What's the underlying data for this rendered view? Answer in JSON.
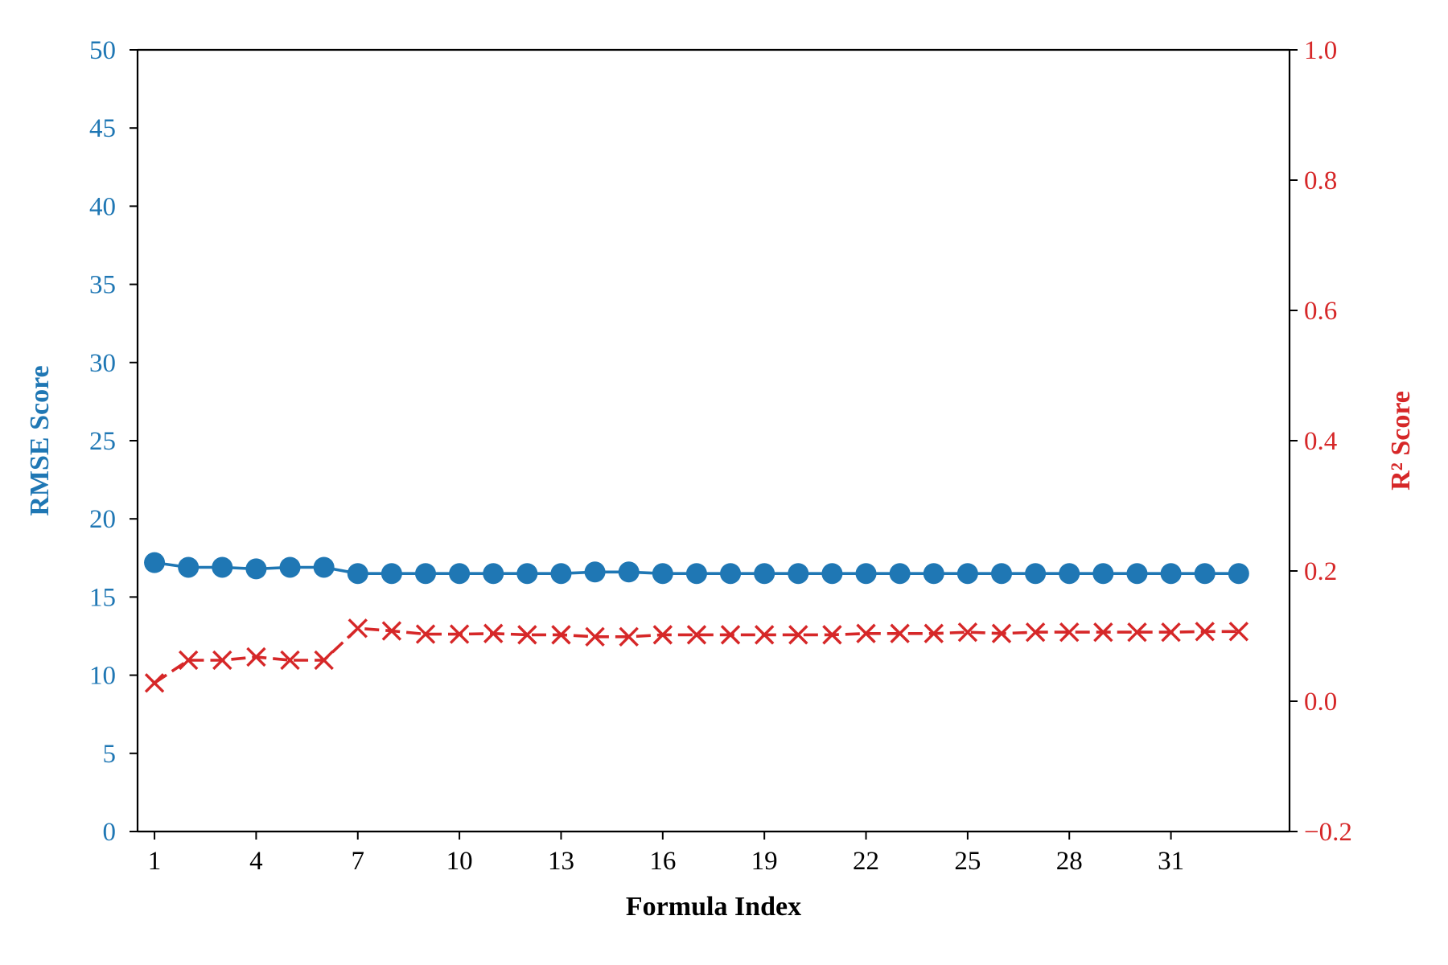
{
  "chart_data": {
    "type": "line",
    "title": "",
    "xlabel": "Formula Index",
    "ylabel_left": "RMSE Score",
    "ylabel_right": "R² Score",
    "x": [
      1,
      2,
      3,
      4,
      5,
      6,
      7,
      8,
      9,
      10,
      11,
      12,
      13,
      14,
      15,
      16,
      17,
      18,
      19,
      20,
      21,
      22,
      23,
      24,
      25,
      26,
      27,
      28,
      29,
      30,
      31,
      32,
      33
    ],
    "x_ticks": [
      1,
      4,
      7,
      10,
      13,
      16,
      19,
      22,
      25,
      28,
      31
    ],
    "y_left_lim": [
      0,
      50
    ],
    "y_left_ticks": [
      0,
      5,
      10,
      15,
      20,
      25,
      30,
      35,
      40,
      45,
      50
    ],
    "y_right_lim": [
      -0.2,
      1.0
    ],
    "y_right_ticks": [
      -0.2,
      0.0,
      0.2,
      0.4,
      0.6,
      0.8,
      1.0
    ],
    "y_right_tick_labels": [
      "−0.2",
      "0.0",
      "0.2",
      "0.4",
      "0.6",
      "0.8",
      "1.0"
    ],
    "grid": false,
    "colors": {
      "left": "#1f77b4",
      "right": "#d62728",
      "axis": "#000000"
    },
    "series": [
      {
        "axis": "left",
        "marker": "circle",
        "line": "solid",
        "values": [
          17.2,
          16.9,
          16.9,
          16.8,
          16.9,
          16.9,
          16.5,
          16.5,
          16.5,
          16.5,
          16.5,
          16.5,
          16.5,
          16.6,
          16.6,
          16.5,
          16.5,
          16.5,
          16.5,
          16.5,
          16.5,
          16.5,
          16.5,
          16.5,
          16.5,
          16.5,
          16.5,
          16.5,
          16.5,
          16.5,
          16.5,
          16.5,
          16.5
        ]
      },
      {
        "axis": "right",
        "marker": "x",
        "line": "dashed",
        "values": [
          0.028,
          0.063,
          0.063,
          0.068,
          0.063,
          0.063,
          0.112,
          0.108,
          0.103,
          0.103,
          0.104,
          0.102,
          0.102,
          0.099,
          0.099,
          0.102,
          0.102,
          0.102,
          0.102,
          0.102,
          0.102,
          0.104,
          0.104,
          0.104,
          0.106,
          0.104,
          0.106,
          0.106,
          0.106,
          0.106,
          0.106,
          0.107,
          0.107
        ]
      }
    ]
  }
}
